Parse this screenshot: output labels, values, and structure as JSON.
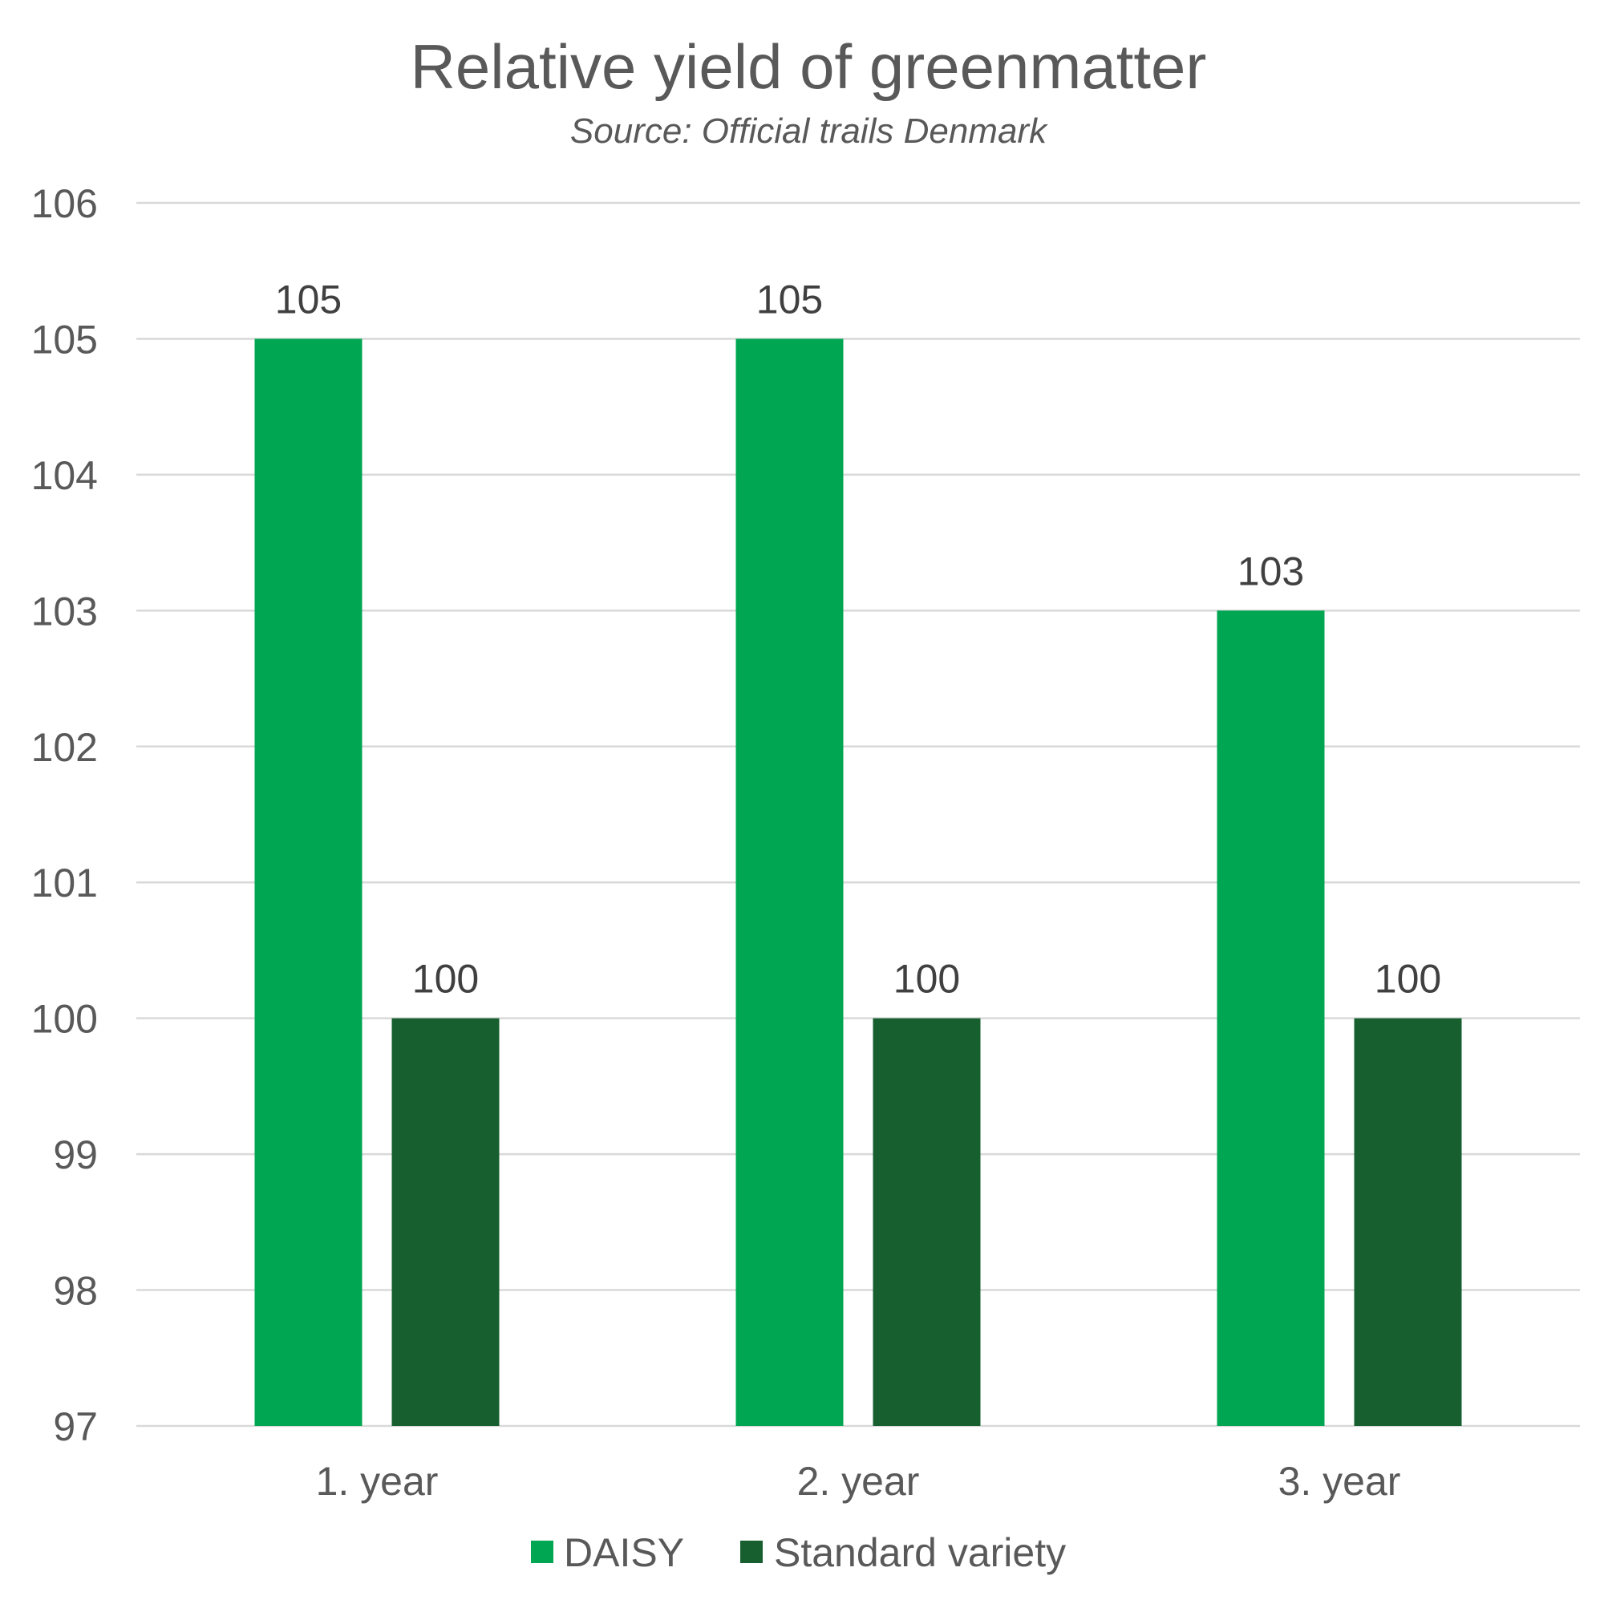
{
  "chart_data": {
    "type": "bar",
    "title": "Relative yield of greenmatter",
    "subtitle": "Source: Official trails Denmark",
    "categories": [
      "1. year",
      "2. year",
      "3. year"
    ],
    "series": [
      {
        "name": "DAISY",
        "values": [
          105,
          105,
          103
        ],
        "color": "#00a651"
      },
      {
        "name": "Standard variety",
        "values": [
          100,
          100,
          100
        ],
        "color": "#175f2f"
      }
    ],
    "ylim": [
      97,
      106
    ],
    "yticks": [
      97,
      98,
      99,
      100,
      101,
      102,
      103,
      104,
      105,
      106
    ],
    "grid": true,
    "legend": "bottom",
    "data_labels": true
  },
  "colors": {
    "text": "#595959",
    "data_label": "#404040",
    "gridline": "#d9d9d9",
    "background": "#ffffff"
  }
}
